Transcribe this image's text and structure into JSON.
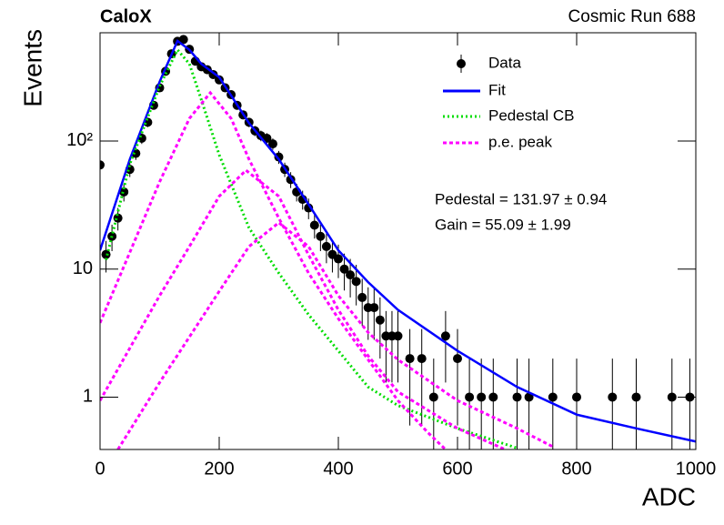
{
  "chart_data": {
    "type": "line",
    "title": "CaloX",
    "subtitle": "Cosmic Run 688",
    "x_label": "ADC",
    "y_label": "Events",
    "log_y": true,
    "xlim": [
      0,
      1000
    ],
    "xticks": [
      0,
      200,
      400,
      600,
      800,
      1000
    ],
    "ylim": [
      0.39,
      700
    ],
    "yticks": [
      1,
      10,
      {
        "value": 100,
        "label": "10²"
      }
    ],
    "annotations": [
      "Pedestal = 131.97 ± 0.94",
      "Gain = 55.09 ± 1.99"
    ],
    "series": [
      {
        "name": "Data",
        "style": "points",
        "color": "#000000",
        "x": [
          0,
          10,
          20,
          30,
          40,
          50,
          60,
          70,
          80,
          90,
          100,
          110,
          120,
          130,
          140,
          150,
          160,
          170,
          180,
          190,
          200,
          210,
          220,
          230,
          240,
          250,
          260,
          270,
          280,
          290,
          300,
          310,
          320,
          330,
          340,
          350,
          360,
          370,
          380,
          390,
          400,
          410,
          420,
          430,
          440,
          450,
          460,
          470,
          480,
          490,
          500,
          520,
          540,
          560,
          580,
          600,
          620,
          640,
          660,
          700,
          720,
          760,
          800,
          860,
          900,
          960,
          990
        ],
        "values": [
          65,
          13,
          18,
          25,
          40,
          60,
          80,
          105,
          140,
          190,
          260,
          350,
          480,
          600,
          620,
          520,
          420,
          380,
          360,
          330,
          300,
          260,
          230,
          190,
          160,
          140,
          120,
          110,
          105,
          95,
          75,
          60,
          50,
          40,
          35,
          30,
          22,
          18,
          15,
          13,
          12,
          10,
          9,
          8,
          6,
          5,
          5,
          4,
          3,
          3,
          3,
          2,
          2,
          1,
          3,
          2,
          1,
          1,
          1,
          1,
          1,
          1,
          1,
          1,
          1,
          1,
          1
        ],
        "errors": [
          8.1,
          3.6,
          4.2,
          5,
          6.3,
          7.7,
          8.9,
          10.2,
          11.8,
          13.8,
          16.1,
          18.7,
          21.9,
          24.5,
          24.9,
          22.8,
          20.5,
          19.5,
          19,
          18.2,
          17.3,
          16.1,
          15.2,
          13.8,
          12.6,
          11.8,
          11,
          10.5,
          10.2,
          9.7,
          8.7,
          7.7,
          7.1,
          6.3,
          5.9,
          5.5,
          4.7,
          4.2,
          3.9,
          3.6,
          3.5,
          3.2,
          3,
          2.8,
          2.4,
          2.2,
          2.2,
          2,
          1.7,
          1.7,
          1.7,
          1.4,
          1.4,
          1,
          1.7,
          1.4,
          1,
          1,
          1,
          1,
          1,
          1,
          1,
          1,
          1,
          1,
          1
        ]
      },
      {
        "name": "Fit",
        "style": "solid",
        "color": "#0000ff",
        "x": [
          0,
          50,
          100,
          130,
          150,
          170,
          200,
          250,
          300,
          350,
          400,
          450,
          500,
          600,
          700,
          800,
          900,
          1000
        ],
        "values": [
          14,
          72,
          290,
          605,
          515,
          400,
          315,
          138,
          72,
          32,
          14,
          7.9,
          4.8,
          2.3,
          1.2,
          0.73,
          0.57,
          0.45
        ]
      },
      {
        "name": "Pedestal CB",
        "style": "dotted",
        "color": "#00dd00",
        "x": [
          10,
          50,
          100,
          130,
          150,
          170,
          200,
          250,
          300,
          350,
          400,
          450,
          500,
          600,
          700
        ],
        "values": [
          11.8,
          66,
          268,
          515,
          400,
          210,
          78,
          21,
          9.3,
          4.4,
          2.3,
          1.2,
          0.86,
          0.57,
          0.4
        ]
      },
      {
        "name": "p.e. peak",
        "style": "dashed",
        "color": "#ff00ff",
        "curves": [
          {
            "x": [
              0,
              100,
              150,
              185,
              220,
              250,
              300,
              350,
              400,
              450,
              500,
              550,
              580
            ],
            "values": [
              3.8,
              48,
              150,
              238,
              150,
              72,
              25,
              9.3,
              4.1,
              1.96,
              0.94,
              0.53,
              0.39
            ]
          },
          {
            "x": [
              0,
              100,
              150,
              200,
              245,
              300,
              350,
              400,
              450,
              500,
              600,
              680
            ],
            "values": [
              0.94,
              6.2,
              15,
              37,
              59,
              37,
              12.9,
              4.8,
              2.1,
              1.1,
              0.57,
              0.39
            ]
          },
          {
            "x": [
              30,
              100,
              150,
              200,
              250,
              300,
              350,
              400,
              450,
              500,
              600,
              700,
              760
            ],
            "values": [
              0.39,
              1.3,
              2.95,
              6.7,
              15,
              23,
              15,
              6.2,
              3.2,
              1.96,
              0.94,
              0.57,
              0.41
            ]
          }
        ]
      }
    ]
  }
}
